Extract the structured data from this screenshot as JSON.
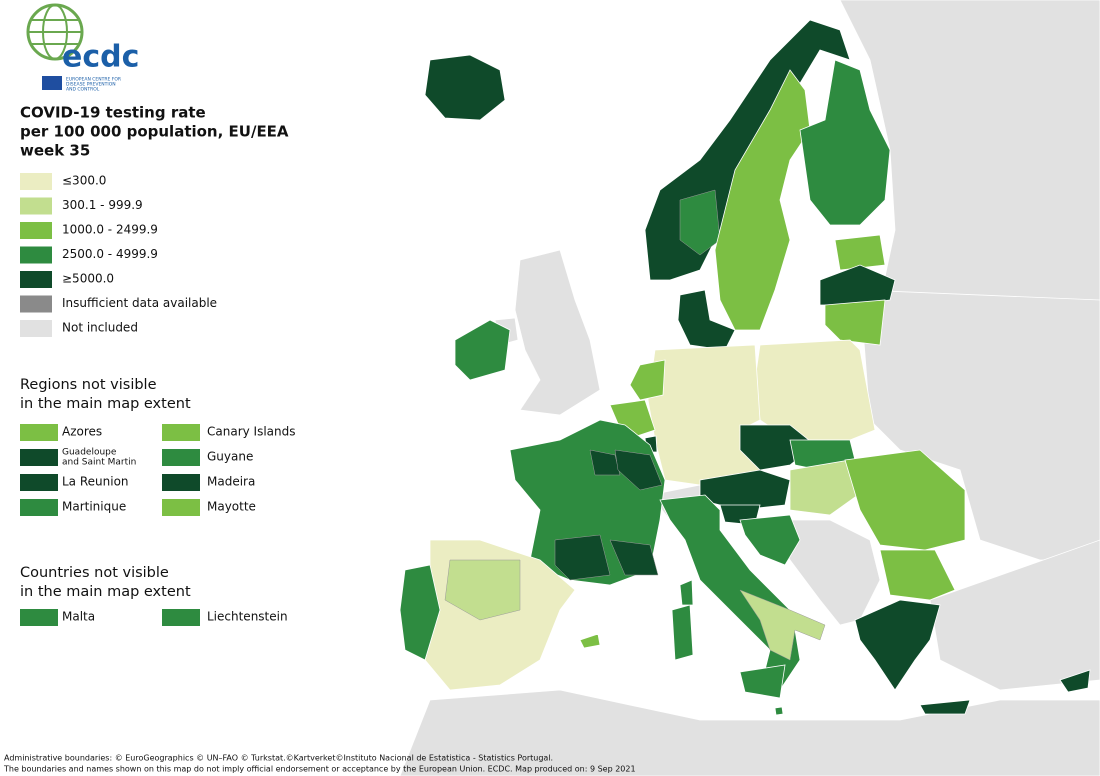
{
  "logo": {
    "name": "ecdc",
    "lines": [
      "EUROPEAN CENTRE FOR",
      "DISEASE PREVENTION",
      "AND CONTROL"
    ]
  },
  "legend": {
    "title": [
      "COVID-19 testing rate",
      "per 100 000 population, EU/EEA",
      "week 35"
    ],
    "items": [
      {
        "label": "≤300.0",
        "color": "#ebedc2"
      },
      {
        "label": "300.1 - 999.9",
        "color": "#c2de8f"
      },
      {
        "label": "1000.0 - 2499.9",
        "color": "#7cbf44"
      },
      {
        "label": "2500.0 - 4999.9",
        "color": "#2e8b40"
      },
      {
        "label": "≥5000.0",
        "color": "#0f4a2a"
      },
      {
        "label": "Insufficient data available",
        "color": "#8a8a8a"
      },
      {
        "label": "Not included",
        "color": "#e1e1e1"
      }
    ]
  },
  "regions_not_visible": {
    "title": [
      "Regions not visible",
      "in the main map extent"
    ],
    "items": [
      {
        "label": [
          "Azores"
        ],
        "color": "#7cbf44"
      },
      {
        "label": [
          "Guadeloupe",
          "and Saint Martin"
        ],
        "color": "#0f4a2a"
      },
      {
        "label": [
          "La Reunion"
        ],
        "color": "#0f4a2a"
      },
      {
        "label": [
          "Martinique"
        ],
        "color": "#2e8b40"
      },
      {
        "label": [
          "Canary Islands"
        ],
        "color": "#7cbf44"
      },
      {
        "label": [
          "Guyane"
        ],
        "color": "#2e8b40"
      },
      {
        "label": [
          "Madeira"
        ],
        "color": "#0f4a2a"
      },
      {
        "label": [
          "Mayotte"
        ],
        "color": "#7cbf44"
      }
    ]
  },
  "countries_not_visible": {
    "title": [
      "Countries not visible",
      "in the main map extent"
    ],
    "items": [
      {
        "label": [
          "Malta"
        ],
        "color": "#2e8b40"
      },
      {
        "label": [
          "Liechtenstein"
        ],
        "color": "#2e8b40"
      }
    ]
  },
  "footer": [
    "Administrative boundaries: © EuroGeographics © UN–FAO © Turkstat.©Kartverket©Instituto Nacional de Estatistica - Statistics Portugal.",
    "The boundaries and names shown on this map do not imply official endorsement or acceptance by the European Union. ECDC. Map produced on: 9 Sep 2021"
  ]
}
